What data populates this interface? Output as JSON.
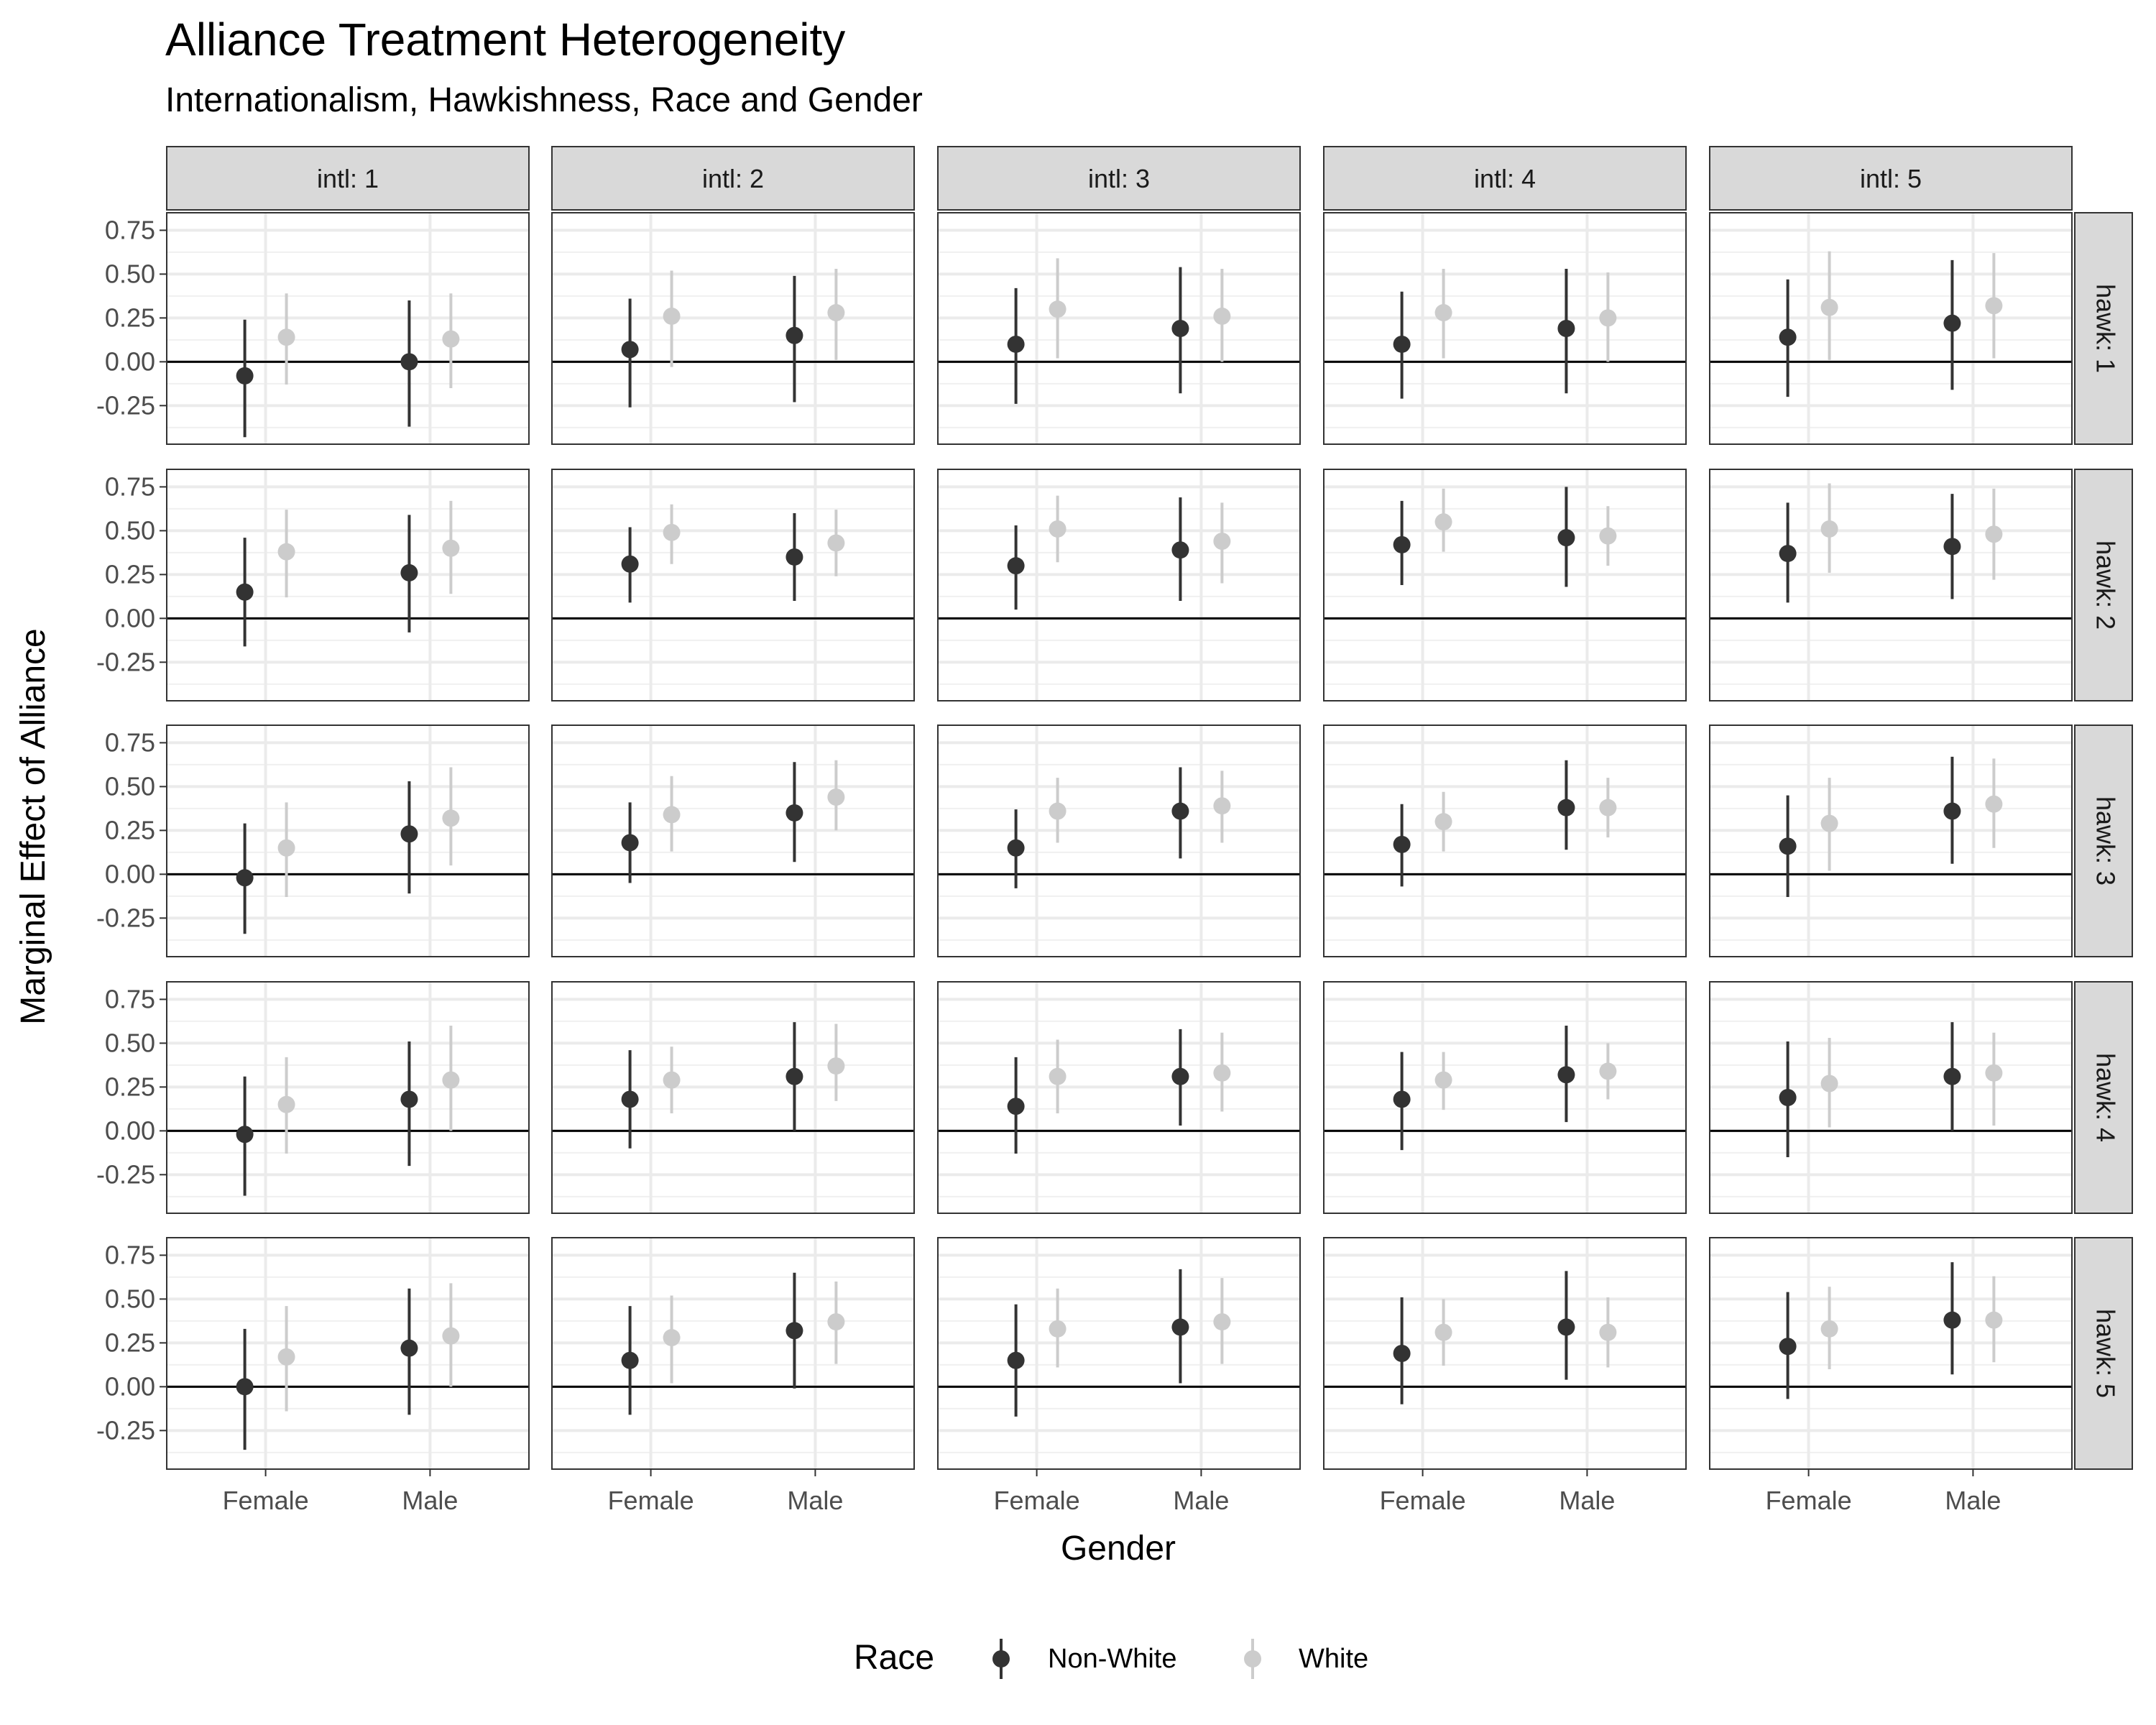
{
  "chart_data": {
    "type": "scatter",
    "title": "Alliance Treatment Heterogeneity",
    "subtitle": "Internationalism, Hawkishness, Race and Gender",
    "xlabel": "Gender",
    "ylabel": "Marginal Effect of Alliance",
    "categories": [
      "Female",
      "Male"
    ],
    "y_ticks": [
      "0.75",
      "0.50",
      "0.25",
      "0.00",
      "-0.25"
    ],
    "ylim": [
      -0.47,
      0.85
    ],
    "reference_line_y": 0,
    "grid": true,
    "legend": {
      "title": "Race",
      "placement": "bottom",
      "entries": [
        {
          "label": "Non-White",
          "color": "#333333"
        },
        {
          "label": "White",
          "color": "#cccccc"
        }
      ]
    },
    "series_colors": {
      "Non-White": "#333333",
      "White": "#cccccc"
    },
    "facet_columns": [
      "intl: 1",
      "intl: 2",
      "intl: 3",
      "intl: 4",
      "intl: 5"
    ],
    "facet_rows": [
      "hawk: 1",
      "hawk: 2",
      "hawk: 3",
      "hawk: 4",
      "hawk: 5"
    ],
    "panels": [
      [
        {
          "nw_f": [
            -0.08,
            -0.43,
            0.24
          ],
          "w_f": [
            0.14,
            -0.13,
            0.39
          ],
          "nw_m": [
            0.0,
            -0.37,
            0.35
          ],
          "w_m": [
            0.13,
            -0.15,
            0.39
          ]
        },
        {
          "nw_f": [
            0.07,
            -0.26,
            0.36
          ],
          "w_f": [
            0.26,
            -0.03,
            0.52
          ],
          "nw_m": [
            0.15,
            -0.23,
            0.49
          ],
          "w_m": [
            0.28,
            0.01,
            0.53
          ]
        },
        {
          "nw_f": [
            0.1,
            -0.24,
            0.42
          ],
          "w_f": [
            0.3,
            0.02,
            0.59
          ],
          "nw_m": [
            0.19,
            -0.18,
            0.54
          ],
          "w_m": [
            0.26,
            0.0,
            0.53
          ]
        },
        {
          "nw_f": [
            0.1,
            -0.21,
            0.4
          ],
          "w_f": [
            0.28,
            0.02,
            0.53
          ],
          "nw_m": [
            0.19,
            -0.18,
            0.53
          ],
          "w_m": [
            0.25,
            0.0,
            0.51
          ]
        },
        {
          "nw_f": [
            0.14,
            -0.2,
            0.47
          ],
          "w_f": [
            0.31,
            0.01,
            0.63
          ],
          "nw_m": [
            0.22,
            -0.16,
            0.58
          ],
          "w_m": [
            0.32,
            0.02,
            0.62
          ]
        }
      ],
      [
        {
          "nw_f": [
            0.15,
            -0.16,
            0.46
          ],
          "w_f": [
            0.38,
            0.12,
            0.62
          ],
          "nw_m": [
            0.26,
            -0.08,
            0.59
          ],
          "w_m": [
            0.4,
            0.14,
            0.67
          ]
        },
        {
          "nw_f": [
            0.31,
            0.09,
            0.52
          ],
          "w_f": [
            0.49,
            0.31,
            0.65
          ],
          "nw_m": [
            0.35,
            0.1,
            0.6
          ],
          "w_m": [
            0.43,
            0.24,
            0.62
          ]
        },
        {
          "nw_f": [
            0.3,
            0.05,
            0.53
          ],
          "w_f": [
            0.51,
            0.32,
            0.7
          ],
          "nw_m": [
            0.39,
            0.1,
            0.69
          ],
          "w_m": [
            0.44,
            0.2,
            0.66
          ]
        },
        {
          "nw_f": [
            0.42,
            0.19,
            0.67
          ],
          "w_f": [
            0.55,
            0.38,
            0.74
          ],
          "nw_m": [
            0.46,
            0.18,
            0.75
          ],
          "w_m": [
            0.47,
            0.3,
            0.64
          ]
        },
        {
          "nw_f": [
            0.37,
            0.09,
            0.66
          ],
          "w_f": [
            0.51,
            0.26,
            0.77
          ],
          "nw_m": [
            0.41,
            0.11,
            0.71
          ],
          "w_m": [
            0.48,
            0.22,
            0.74
          ]
        }
      ],
      [
        {
          "nw_f": [
            -0.02,
            -0.34,
            0.29
          ],
          "w_f": [
            0.15,
            -0.13,
            0.41
          ],
          "nw_m": [
            0.23,
            -0.11,
            0.53
          ],
          "w_m": [
            0.32,
            0.05,
            0.61
          ]
        },
        {
          "nw_f": [
            0.18,
            -0.05,
            0.41
          ],
          "w_f": [
            0.34,
            0.13,
            0.56
          ],
          "nw_m": [
            0.35,
            0.07,
            0.64
          ],
          "w_m": [
            0.44,
            0.25,
            0.65
          ]
        },
        {
          "nw_f": [
            0.15,
            -0.08,
            0.37
          ],
          "w_f": [
            0.36,
            0.18,
            0.55
          ],
          "nw_m": [
            0.36,
            0.09,
            0.61
          ],
          "w_m": [
            0.39,
            0.18,
            0.59
          ]
        },
        {
          "nw_f": [
            0.17,
            -0.07,
            0.4
          ],
          "w_f": [
            0.3,
            0.13,
            0.47
          ],
          "nw_m": [
            0.38,
            0.14,
            0.65
          ],
          "w_m": [
            0.38,
            0.21,
            0.55
          ]
        },
        {
          "nw_f": [
            0.16,
            -0.13,
            0.45
          ],
          "w_f": [
            0.29,
            0.02,
            0.55
          ],
          "nw_m": [
            0.36,
            0.06,
            0.67
          ],
          "w_m": [
            0.4,
            0.15,
            0.66
          ]
        }
      ],
      [
        {
          "nw_f": [
            -0.02,
            -0.37,
            0.31
          ],
          "w_f": [
            0.15,
            -0.13,
            0.42
          ],
          "nw_m": [
            0.18,
            -0.2,
            0.51
          ],
          "w_m": [
            0.29,
            0.0,
            0.6
          ]
        },
        {
          "nw_f": [
            0.18,
            -0.1,
            0.46
          ],
          "w_f": [
            0.29,
            0.1,
            0.48
          ],
          "nw_m": [
            0.31,
            0.0,
            0.62
          ],
          "w_m": [
            0.37,
            0.17,
            0.61
          ]
        },
        {
          "nw_f": [
            0.14,
            -0.13,
            0.42
          ],
          "w_f": [
            0.31,
            0.1,
            0.52
          ],
          "nw_m": [
            0.31,
            0.03,
            0.58
          ],
          "w_m": [
            0.33,
            0.11,
            0.56
          ]
        },
        {
          "nw_f": [
            0.18,
            -0.11,
            0.45
          ],
          "w_f": [
            0.29,
            0.12,
            0.45
          ],
          "nw_m": [
            0.32,
            0.05,
            0.6
          ],
          "w_m": [
            0.34,
            0.18,
            0.5
          ]
        },
        {
          "nw_f": [
            0.19,
            -0.15,
            0.51
          ],
          "w_f": [
            0.27,
            0.02,
            0.53
          ],
          "nw_m": [
            0.31,
            0.0,
            0.62
          ],
          "w_m": [
            0.33,
            0.03,
            0.56
          ]
        }
      ],
      [
        {
          "nw_f": [
            0.0,
            -0.36,
            0.33
          ],
          "w_f": [
            0.17,
            -0.14,
            0.46
          ],
          "nw_m": [
            0.22,
            -0.16,
            0.56
          ],
          "w_m": [
            0.29,
            0.0,
            0.59
          ]
        },
        {
          "nw_f": [
            0.15,
            -0.16,
            0.46
          ],
          "w_f": [
            0.28,
            0.02,
            0.52
          ],
          "nw_m": [
            0.32,
            -0.01,
            0.65
          ],
          "w_m": [
            0.37,
            0.13,
            0.6
          ]
        },
        {
          "nw_f": [
            0.15,
            -0.17,
            0.47
          ],
          "w_f": [
            0.33,
            0.11,
            0.56
          ],
          "nw_m": [
            0.34,
            0.02,
            0.67
          ],
          "w_m": [
            0.37,
            0.13,
            0.62
          ]
        },
        {
          "nw_f": [
            0.19,
            -0.1,
            0.51
          ],
          "w_f": [
            0.31,
            0.12,
            0.5
          ],
          "nw_m": [
            0.34,
            0.04,
            0.66
          ],
          "w_m": [
            0.31,
            0.11,
            0.51
          ]
        },
        {
          "nw_f": [
            0.23,
            -0.07,
            0.54
          ],
          "w_f": [
            0.33,
            0.1,
            0.57
          ],
          "nw_m": [
            0.38,
            0.07,
            0.71
          ],
          "w_m": [
            0.38,
            0.14,
            0.63
          ]
        }
      ]
    ]
  }
}
